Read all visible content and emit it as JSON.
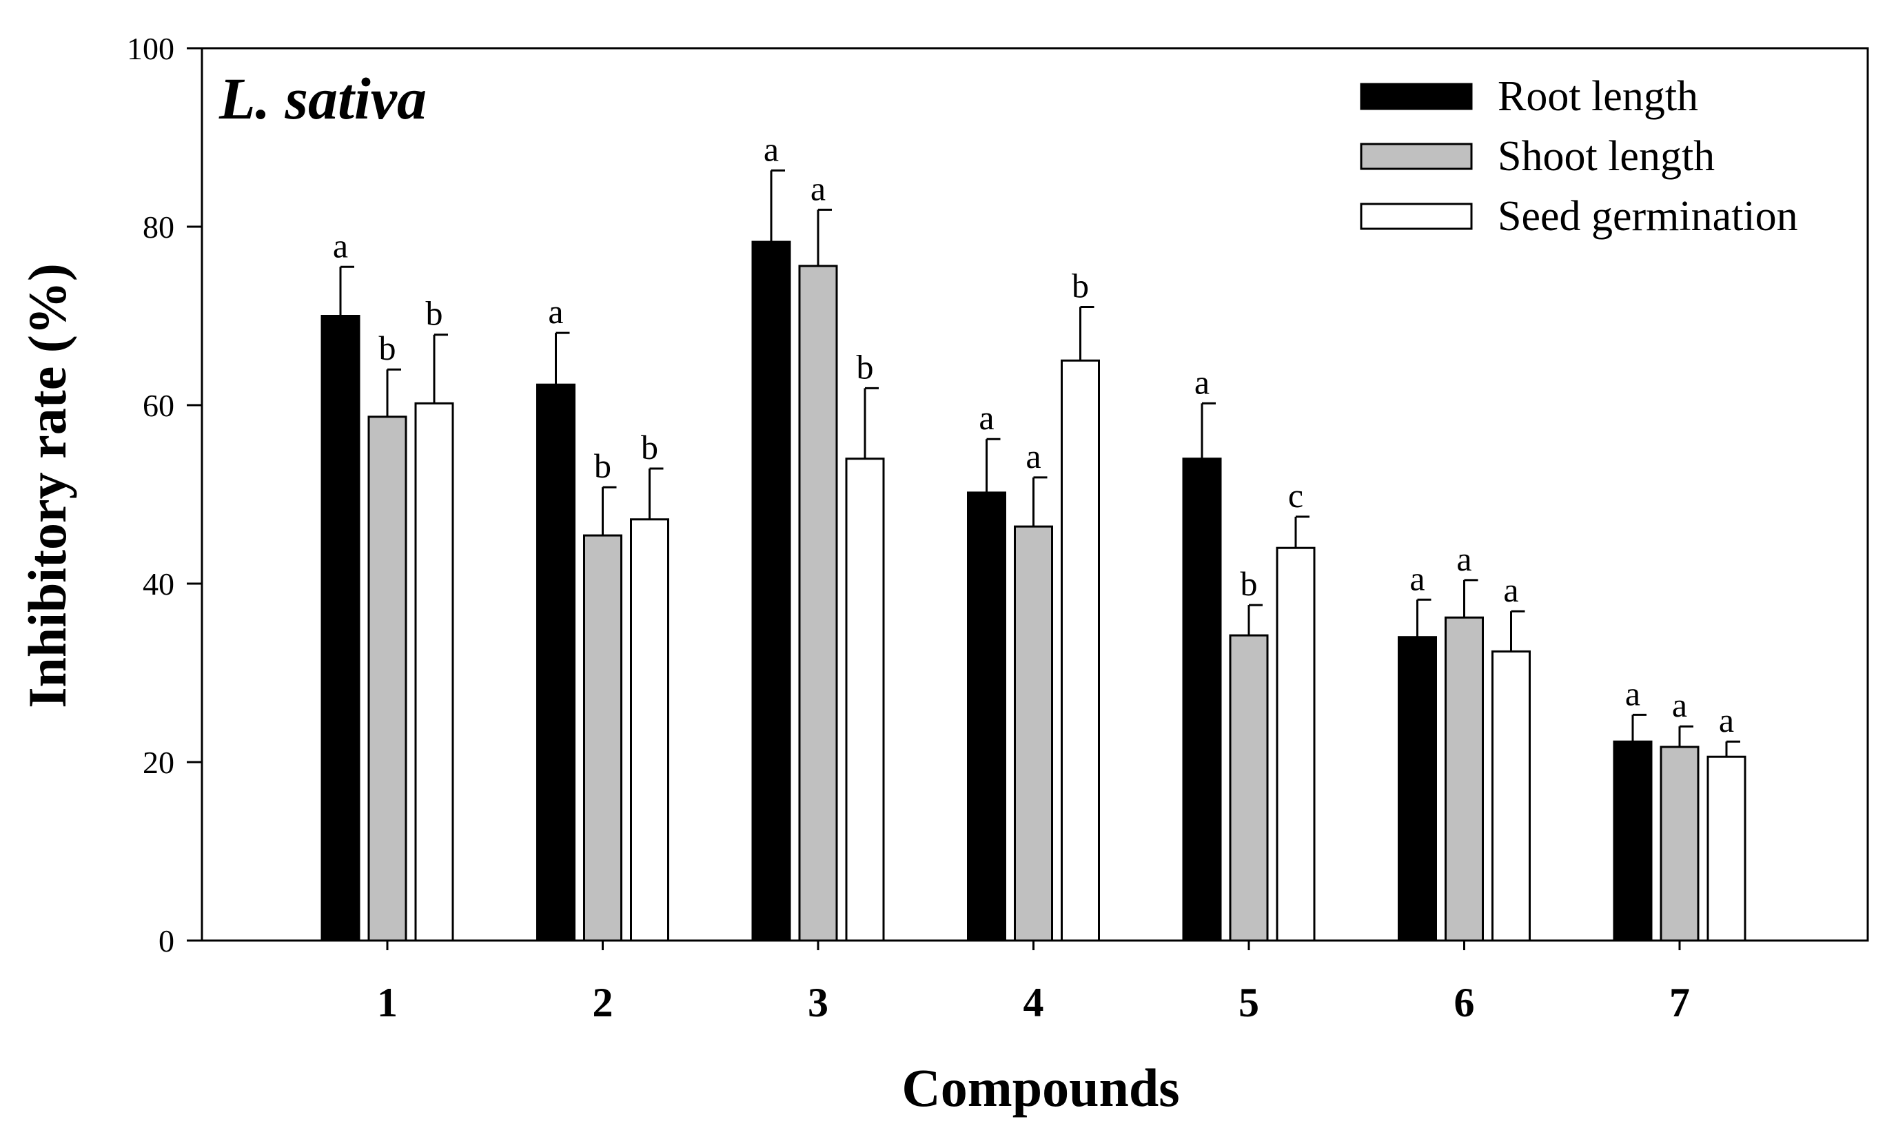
{
  "chart_data": {
    "type": "bar",
    "title": "L. sativa",
    "xlabel": "Compounds",
    "ylabel": "Inhibitory rate (%)",
    "ylim": [
      0,
      100
    ],
    "yticks": [
      "0",
      "20",
      "40",
      "60",
      "80",
      "100"
    ],
    "categories": [
      "1",
      "2",
      "3",
      "4",
      "5",
      "6",
      "7"
    ],
    "legend_position": "top-right",
    "series": [
      {
        "name": "Root length",
        "color": "#000000",
        "values": [
          70,
          62.3,
          78.3,
          50.2,
          54,
          34,
          22.3
        ],
        "errors": [
          5.5,
          5.8,
          8,
          6,
          6.2,
          4.2,
          3
        ],
        "letters": [
          "a",
          "a",
          "a",
          "a",
          "a",
          "a",
          "a"
        ]
      },
      {
        "name": "Shoot length",
        "color": "#c0c0c0",
        "values": [
          58.7,
          45.4,
          75.6,
          46.4,
          34.2,
          36.2,
          21.7
        ],
        "errors": [
          5.3,
          5.4,
          6.3,
          5.5,
          3.4,
          4.2,
          2.3
        ],
        "letters": [
          "b",
          "b",
          "a",
          "a",
          "b",
          "a",
          "a"
        ]
      },
      {
        "name": "Seed germination",
        "color": "#ffffff",
        "values": [
          60.2,
          47.2,
          54,
          65,
          44,
          32.4,
          20.6
        ],
        "errors": [
          7.7,
          5.7,
          7.9,
          6,
          3.5,
          4.5,
          1.7
        ],
        "letters": [
          "b",
          "b",
          "b",
          "b",
          "c",
          "a",
          "a"
        ]
      }
    ]
  }
}
